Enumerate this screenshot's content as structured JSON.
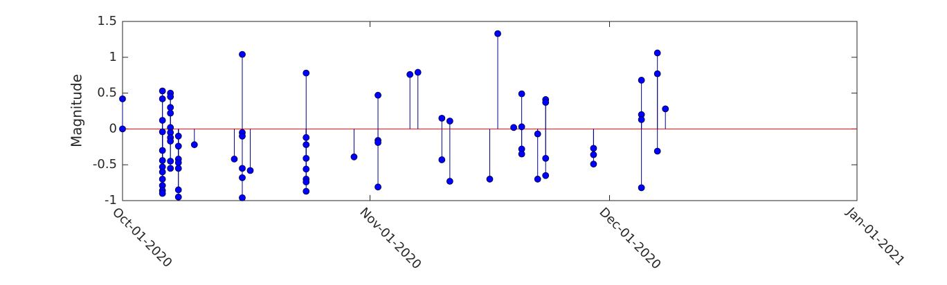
{
  "chart_data": {
    "type": "stem",
    "ylabel": "Magnitude",
    "xlim": [
      "2020-10-01",
      "2021-01-01"
    ],
    "xticks": [
      {
        "value": "2020-10-01",
        "label": "Oct-01-2020"
      },
      {
        "value": "2020-11-01",
        "label": "Nov-01-2020"
      },
      {
        "value": "2020-12-01",
        "label": "Dec-01-2020"
      },
      {
        "value": "2021-01-01",
        "label": "Jan-01-2021"
      }
    ],
    "ylim": [
      -1,
      1.5
    ],
    "yticks": [
      -1,
      -0.5,
      0,
      0.5,
      1,
      1.5
    ],
    "baseline_color": "#ff0000",
    "series": [
      {
        "color": "#0000ff",
        "stem_color": "#00008b",
        "x": [
          "2020-10-01",
          "2020-10-01",
          "2020-10-06",
          "2020-10-06",
          "2020-10-06",
          "2020-10-06",
          "2020-10-06",
          "2020-10-06",
          "2020-10-06",
          "2020-10-06",
          "2020-10-06",
          "2020-10-06",
          "2020-10-06",
          "2020-10-06",
          "2020-10-07",
          "2020-10-07",
          "2020-10-07",
          "2020-10-07",
          "2020-10-07",
          "2020-10-07",
          "2020-10-07",
          "2020-10-07",
          "2020-10-07",
          "2020-10-07",
          "2020-10-08",
          "2020-10-08",
          "2020-10-08",
          "2020-10-08",
          "2020-10-08",
          "2020-10-08",
          "2020-10-08",
          "2020-10-10",
          "2020-10-15",
          "2020-10-16",
          "2020-10-16",
          "2020-10-16",
          "2020-10-16",
          "2020-10-16",
          "2020-10-16",
          "2020-10-17",
          "2020-10-24",
          "2020-10-24",
          "2020-10-24",
          "2020-10-24",
          "2020-10-24",
          "2020-10-24",
          "2020-10-24",
          "2020-10-24",
          "2020-10-30",
          "2020-11-02",
          "2020-11-02",
          "2020-11-02",
          "2020-11-02",
          "2020-11-06",
          "2020-11-07",
          "2020-11-10",
          "2020-11-10",
          "2020-11-11",
          "2020-11-11",
          "2020-11-16",
          "2020-11-17",
          "2020-11-19",
          "2020-11-20",
          "2020-11-20",
          "2020-11-20",
          "2020-11-20",
          "2020-11-22",
          "2020-11-22",
          "2020-11-23",
          "2020-11-23",
          "2020-11-23",
          "2020-11-23",
          "2020-11-29",
          "2020-11-29",
          "2020-11-29",
          "2020-12-05",
          "2020-12-05",
          "2020-12-05",
          "2020-12-05",
          "2020-12-07",
          "2020-12-07",
          "2020-12-07",
          "2020-12-08"
        ],
        "values": [
          0.42,
          0,
          0.53,
          0.42,
          0.12,
          -0.04,
          -0.3,
          -0.44,
          -0.53,
          -0.6,
          -0.7,
          -0.79,
          -0.86,
          -0.9,
          0.5,
          0.45,
          0.3,
          0.22,
          0.02,
          -0.05,
          -0.12,
          -0.17,
          -0.45,
          -0.55,
          -0.1,
          -0.24,
          -0.42,
          -0.47,
          -0.55,
          -0.85,
          -0.95,
          -0.22,
          -0.42,
          1.04,
          -0.05,
          -0.1,
          -0.55,
          -0.68,
          -0.96,
          -0.58,
          0.78,
          -0.12,
          -0.22,
          -0.41,
          -0.56,
          -0.7,
          -0.87,
          -0.74,
          -0.39,
          -0.16,
          0.47,
          -0.19,
          -0.81,
          0.76,
          0.79,
          0.15,
          -0.43,
          0.11,
          -0.73,
          -0.7,
          1.33,
          0.02,
          0.03,
          0.49,
          -0.28,
          -0.35,
          -0.07,
          -0.7,
          0.41,
          0.37,
          -0.41,
          -0.65,
          -0.27,
          -0.36,
          -0.49,
          0.68,
          0.2,
          0.13,
          -0.82,
          1.06,
          0.77,
          -0.31,
          0.28
        ]
      }
    ]
  }
}
